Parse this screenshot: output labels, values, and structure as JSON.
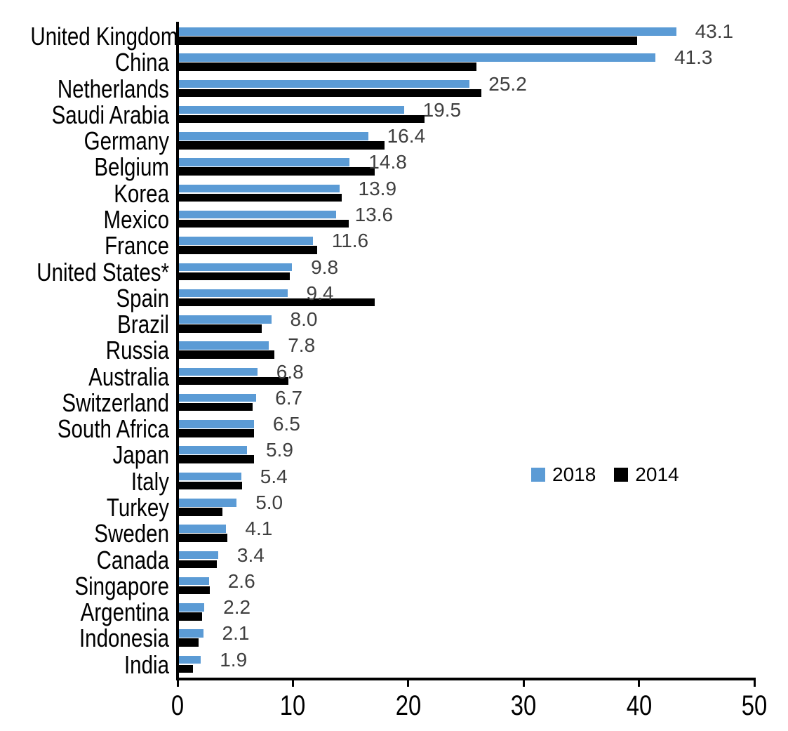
{
  "chart_data": {
    "type": "bar",
    "orientation": "horizontal",
    "title": "",
    "xlabel": "",
    "ylabel": "",
    "categories": [
      "United Kingdom",
      "China",
      "Netherlands",
      "Saudi Arabia",
      "Germany",
      "Belgium",
      "Korea",
      "Mexico",
      "France",
      "United States*",
      "Spain",
      "Brazil",
      "Russia",
      "Australia",
      "Switzerland",
      "South Africa",
      "Japan",
      "Italy",
      "Turkey",
      "Sweden",
      "Canada",
      "Singapore",
      "Argentina",
      "Indonesia",
      "India"
    ],
    "series": [
      {
        "name": "2018",
        "color": "#5B9BD5",
        "values": [
          43.1,
          41.3,
          25.2,
          19.5,
          16.4,
          14.8,
          13.9,
          13.6,
          11.6,
          9.8,
          9.4,
          8.0,
          7.8,
          6.8,
          6.7,
          6.5,
          5.9,
          5.4,
          5.0,
          4.1,
          3.4,
          2.6,
          2.2,
          2.1,
          1.9
        ]
      },
      {
        "name": "2014",
        "color": "#000000",
        "values": [
          39.7,
          25.8,
          26.2,
          21.3,
          17.8,
          17.0,
          14.1,
          14.7,
          12.0,
          9.6,
          17.0,
          7.2,
          8.3,
          9.5,
          6.4,
          6.5,
          6.5,
          5.5,
          3.8,
          4.2,
          3.3,
          2.7,
          2.0,
          1.7,
          1.2
        ]
      }
    ],
    "data_labels": [
      "43.1",
      "41.3",
      "25.2",
      "19.5",
      "16.4",
      "14.8",
      "13.9",
      "13.6",
      "11.6",
      "9.8",
      "9.4",
      "8.0",
      "7.8",
      "6.8",
      "6.7",
      "6.5",
      "5.9",
      "5.4",
      "5.0",
      "4.1",
      "3.4",
      "2.6",
      "2.2",
      "2.1",
      "1.9"
    ],
    "data_labels_series": "2018",
    "xlim": [
      0,
      50
    ],
    "x_ticks": [
      "0",
      "10",
      "20",
      "30",
      "40",
      "50"
    ],
    "grid": false,
    "legend": {
      "position": "middle-right",
      "entries": [
        {
          "label": "2018",
          "color": "#5B9BD5"
        },
        {
          "label": "2014",
          "color": "#000000"
        }
      ]
    }
  },
  "colors": {
    "series_2018": "#5B9BD5",
    "series_2014": "#000000",
    "value_label": "#3F3F3F",
    "axis": "#000000",
    "background": "#FFFFFF"
  }
}
